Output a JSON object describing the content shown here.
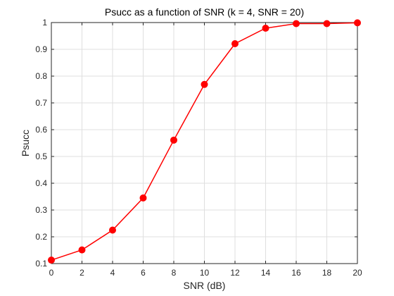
{
  "chart_data": {
    "type": "line",
    "title": "Psucc as a function of SNR (k = 4, SNR = 20)",
    "xlabel": "SNR (dB)",
    "ylabel": "Psucc",
    "xlim": [
      0,
      20
    ],
    "ylim": [
      0.1,
      1
    ],
    "xticks": [
      0,
      2,
      4,
      6,
      8,
      10,
      12,
      14,
      16,
      18,
      20
    ],
    "yticks": [
      0.1,
      0.2,
      0.3,
      0.4,
      0.5,
      0.6,
      0.7,
      0.8,
      0.9,
      1
    ],
    "ytick_labels": [
      "0.1",
      "0.2",
      "0.3",
      "0.4",
      "0.5",
      "0.6",
      "0.7",
      "0.8",
      "0.9",
      "1"
    ],
    "grid": true,
    "series": [
      {
        "color": "#ff0000",
        "marker": "circle",
        "x": [
          0,
          2,
          4,
          6,
          8,
          10,
          12,
          14,
          16,
          18,
          20
        ],
        "y": [
          0.113,
          0.151,
          0.225,
          0.345,
          0.561,
          0.769,
          0.921,
          0.979,
          0.996,
          0.996,
          0.999
        ]
      }
    ]
  }
}
